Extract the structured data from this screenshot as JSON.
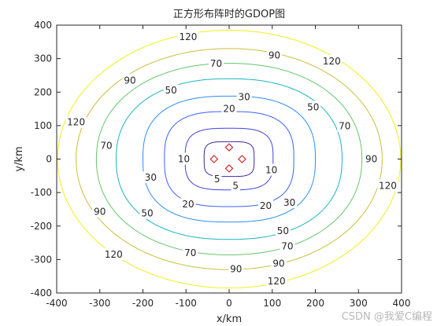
{
  "chart_data": {
    "type": "contour",
    "title": "正方形布阵时的GDOP图",
    "xlabel": "x/km",
    "ylabel": "y/km",
    "xlim": [
      -400,
      400
    ],
    "ylim": [
      -400,
      400
    ],
    "xticks": [
      -400,
      -300,
      -200,
      -100,
      0,
      100,
      200,
      300,
      400
    ],
    "yticks": [
      -400,
      -300,
      -200,
      -100,
      0,
      100,
      200,
      300,
      400
    ],
    "grid": false,
    "box": true,
    "contour_levels": [
      {
        "value": 5,
        "label": "5",
        "color": "#3e26a8",
        "half_width_x": 58,
        "half_height_y": 52,
        "squareness": 4.0
      },
      {
        "value": 10,
        "label": "10",
        "color": "#4143e1",
        "half_width_x": 102,
        "half_height_y": 92,
        "squareness": 3.3
      },
      {
        "value": 20,
        "label": "20",
        "color": "#3b61fb",
        "half_width_x": 150,
        "half_height_y": 142,
        "squareness": 2.9
      },
      {
        "value": 30,
        "label": "30",
        "color": "#2b8ef3",
        "half_width_x": 200,
        "half_height_y": 188,
        "squareness": 2.6
      },
      {
        "value": 50,
        "label": "50",
        "color": "#1cb4c2",
        "half_width_x": 262,
        "half_height_y": 240,
        "squareness": 2.3
      },
      {
        "value": 70,
        "label": "70",
        "color": "#64c66b",
        "half_width_x": 308,
        "half_height_y": 286,
        "squareness": 2.15
      },
      {
        "value": 90,
        "label": "90",
        "color": "#c9c03c",
        "half_width_x": 355,
        "half_height_y": 330,
        "squareness": 2.05
      },
      {
        "value": 120,
        "label": "120",
        "color": "#f2ee1a",
        "half_width_x": 398,
        "half_height_y": 385,
        "squareness": 2.0
      }
    ],
    "contour_labels": [
      {
        "value": "5",
        "x": 15,
        "y": -80
      },
      {
        "value": "5",
        "x": -28,
        "y": -60
      },
      {
        "value": "10",
        "x": -105,
        "y": 0
      },
      {
        "value": "10",
        "x": 98,
        "y": -33
      },
      {
        "value": "20",
        "x": 0,
        "y": 150
      },
      {
        "value": "20",
        "x": -95,
        "y": -135
      },
      {
        "value": "20",
        "x": 85,
        "y": -140
      },
      {
        "value": "30",
        "x": 35,
        "y": 185
      },
      {
        "value": "30",
        "x": -182,
        "y": -55
      },
      {
        "value": "30",
        "x": 140,
        "y": -130
      },
      {
        "value": "50",
        "x": -135,
        "y": 205
      },
      {
        "value": "50",
        "x": 195,
        "y": 155
      },
      {
        "value": "50",
        "x": -190,
        "y": -162
      },
      {
        "value": "50",
        "x": 125,
        "y": -215
      },
      {
        "value": "70",
        "x": -30,
        "y": 285
      },
      {
        "value": "70",
        "x": -285,
        "y": 40
      },
      {
        "value": "70",
        "x": 268,
        "y": 98
      },
      {
        "value": "70",
        "x": -90,
        "y": -280
      },
      {
        "value": "70",
        "x": 135,
        "y": -260
      },
      {
        "value": "90",
        "x": 105,
        "y": 310
      },
      {
        "value": "90",
        "x": -230,
        "y": 235
      },
      {
        "value": "90",
        "x": -300,
        "y": -157
      },
      {
        "value": "90",
        "x": 16,
        "y": -328
      },
      {
        "value": "90",
        "x": 115,
        "y": -312
      },
      {
        "value": "90",
        "x": 330,
        "y": 0
      },
      {
        "value": "120",
        "x": -95,
        "y": 365
      },
      {
        "value": "120",
        "x": 238,
        "y": 292
      },
      {
        "value": "120",
        "x": -355,
        "y": 110
      },
      {
        "value": "120",
        "x": 368,
        "y": -80
      },
      {
        "value": "120",
        "x": -268,
        "y": -285
      },
      {
        "value": "120",
        "x": 110,
        "y": -365
      }
    ],
    "markers": {
      "shape": "diamond",
      "color": "#d62728",
      "points": [
        {
          "x": 0,
          "y": 35
        },
        {
          "x": -35,
          "y": 0
        },
        {
          "x": 30,
          "y": 0
        },
        {
          "x": 0,
          "y": -28
        }
      ]
    }
  },
  "watermark": "CSDN @我爱C编程"
}
